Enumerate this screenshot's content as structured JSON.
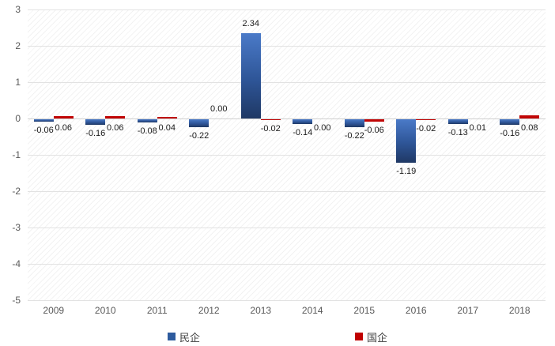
{
  "chart_data": {
    "type": "bar",
    "title": "",
    "xlabel": "",
    "ylabel": "",
    "categories": [
      "2009",
      "2010",
      "2011",
      "2012",
      "2013",
      "2014",
      "2015",
      "2016",
      "2017",
      "2018"
    ],
    "series": [
      {
        "name": "民企",
        "color": "#2e5b9e",
        "color_gradient_top": "#4a7ac8",
        "color_gradient_bottom": "#1f3864",
        "values": [
          -0.06,
          -0.16,
          -0.08,
          -0.22,
          2.34,
          -0.14,
          -0.22,
          -1.19,
          -0.13,
          -0.16
        ],
        "labels": [
          "-0.06",
          "-0.16",
          "-0.08",
          "-0.22",
          "2.34",
          "-0.14",
          "-0.22",
          "-1.19",
          "-0.13",
          "-0.16"
        ],
        "label_sides": [
          "below",
          "below",
          "below",
          "below",
          "above",
          "below",
          "below",
          "below",
          "below",
          "below"
        ]
      },
      {
        "name": "国企",
        "color": "#c00000",
        "values": [
          0.06,
          0.06,
          0.04,
          0.0,
          -0.02,
          0.0,
          -0.06,
          -0.02,
          0.01,
          0.08
        ],
        "labels": [
          "0.06",
          "0.06",
          "0.04",
          "0.00",
          "-0.02",
          "0.00",
          "-0.06",
          "-0.02",
          "0.01",
          "0.08"
        ],
        "label_sides": [
          "below",
          "below",
          "below",
          "above",
          "below",
          "below",
          "below",
          "below",
          "below",
          "below"
        ]
      }
    ],
    "yticks": [
      3,
      2,
      1,
      0,
      -1,
      -2,
      -3,
      -4,
      -5
    ],
    "ylim": [
      -5,
      3
    ],
    "grid": true,
    "plot_background": "diagonal-hatch",
    "legend_position": "bottom"
  },
  "legend": {
    "items": [
      {
        "label": "民企",
        "color": "#2e5b9e"
      },
      {
        "label": "国企",
        "color": "#c00000"
      }
    ]
  },
  "colors": {
    "axis_text": "#595959",
    "data_label_text": "#1a1a1a",
    "gridline": "#e2e2e2"
  }
}
